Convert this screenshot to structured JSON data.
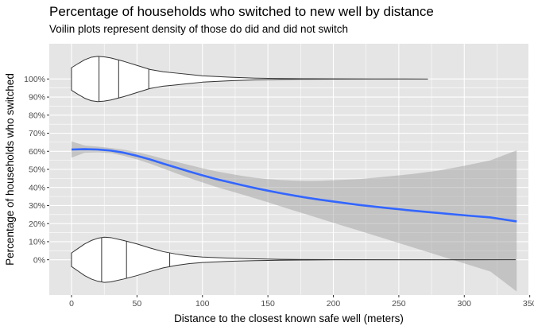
{
  "chart_data": {
    "type": "line",
    "title": "Percentage of households who switched to new well by distance",
    "subtitle": "Voilin plots represent density of those do did and did not switch",
    "xlabel": "Distance to the closest known safe well (meters)",
    "ylabel": "Percentage of households who switched",
    "xlim": [
      -17,
      349
    ],
    "ylim": [
      -0.195,
      1.195
    ],
    "x_ticks": [
      0,
      50,
      100,
      150,
      200,
      250,
      300,
      350
    ],
    "x_tick_labels": [
      "0",
      "50",
      "100",
      "150",
      "200",
      "250",
      "300",
      "350"
    ],
    "y_ticks": [
      0,
      0.1,
      0.2,
      0.3,
      0.4,
      0.5,
      0.6,
      0.7,
      0.8,
      0.9,
      1.0
    ],
    "y_tick_labels": [
      "0%",
      "10%",
      "20%",
      "30%",
      "40%",
      "50%",
      "60%",
      "70%",
      "80%",
      "90%",
      "100%"
    ],
    "grid": true,
    "colors": {
      "panel": "#e5e5e5",
      "grid": "#ffffff",
      "line": "#3366ff",
      "ribbon": "#999999",
      "violin_fill": "#ffffff",
      "violin_stroke": "#333333"
    },
    "smooth": {
      "x": [
        0,
        10,
        20,
        30,
        40,
        50,
        60,
        70,
        80,
        90,
        100,
        110,
        120,
        130,
        140,
        150,
        160,
        170,
        180,
        190,
        200,
        220,
        240,
        260,
        280,
        300,
        320,
        340
      ],
      "y": [
        0.61,
        0.612,
        0.61,
        0.604,
        0.592,
        0.575,
        0.555,
        0.532,
        0.51,
        0.488,
        0.467,
        0.447,
        0.43,
        0.413,
        0.397,
        0.382,
        0.368,
        0.355,
        0.343,
        0.332,
        0.322,
        0.303,
        0.287,
        0.272,
        0.259,
        0.246,
        0.234,
        0.212
      ],
      "lower": [
        0.565,
        0.592,
        0.594,
        0.59,
        0.575,
        0.555,
        0.532,
        0.505,
        0.478,
        0.452,
        0.428,
        0.404,
        0.383,
        0.362,
        0.34,
        0.318,
        0.295,
        0.272,
        0.25,
        0.227,
        0.204,
        0.16,
        0.115,
        0.07,
        0.025,
        -0.02,
        -0.065,
        -0.175
      ],
      "upper": [
        0.655,
        0.632,
        0.626,
        0.618,
        0.609,
        0.595,
        0.578,
        0.559,
        0.542,
        0.524,
        0.506,
        0.49,
        0.477,
        0.464,
        0.454,
        0.446,
        0.441,
        0.438,
        0.436,
        0.437,
        0.44,
        0.446,
        0.46,
        0.474,
        0.493,
        0.52,
        0.55,
        0.605
      ]
    },
    "violins": [
      {
        "y": 1.0,
        "x_range": [
          0,
          272
        ],
        "max_half_height": 0.125,
        "density_x": [
          0,
          5,
          10,
          15,
          20,
          25,
          30,
          40,
          50,
          60,
          70,
          80,
          90,
          100,
          120,
          140,
          160,
          180,
          200,
          230,
          272
        ],
        "density": [
          0.5,
          0.68,
          0.85,
          0.96,
          1.0,
          0.98,
          0.93,
          0.78,
          0.6,
          0.42,
          0.32,
          0.26,
          0.2,
          0.14,
          0.08,
          0.04,
          0.02,
          0.01,
          0.006,
          0.003,
          0.0
        ],
        "quantiles": [
          21,
          36,
          59
        ]
      },
      {
        "y": 0.0,
        "x_range": [
          0,
          339
        ],
        "max_half_height": 0.125,
        "density_x": [
          0,
          5,
          10,
          15,
          20,
          25,
          30,
          40,
          50,
          60,
          70,
          80,
          90,
          100,
          120,
          140,
          160,
          180,
          200,
          250,
          300,
          339
        ],
        "density": [
          0.3,
          0.5,
          0.7,
          0.85,
          0.95,
          1.0,
          0.98,
          0.85,
          0.7,
          0.52,
          0.36,
          0.25,
          0.17,
          0.12,
          0.07,
          0.04,
          0.02,
          0.01,
          0.005,
          0.002,
          0.001,
          0.0
        ],
        "quantiles": [
          23,
          42,
          75
        ]
      }
    ]
  }
}
